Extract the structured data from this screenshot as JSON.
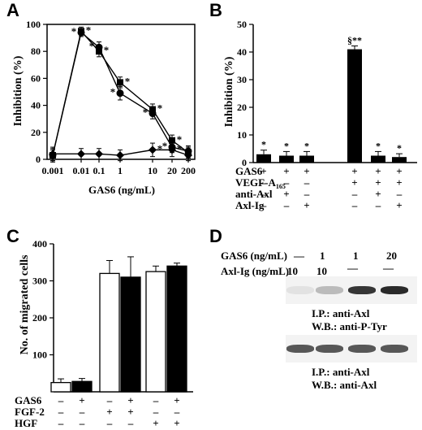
{
  "panels": {
    "A": {
      "letter": "A",
      "type": "line",
      "ylabel": "Inhibition (%)",
      "xlabel": "GAS6 (ng/mL)",
      "yticks": [
        "0",
        "20",
        "40",
        "60",
        "80",
        "100"
      ],
      "xticks": [
        "0.001",
        "0.01",
        "0.1",
        "1",
        "10",
        "20",
        "200"
      ],
      "ylim": [
        0,
        100
      ],
      "series": [
        {
          "marker": "square",
          "values": [
            3,
            95,
            80,
            57,
            37,
            14,
            5
          ],
          "errors": [
            5,
            3,
            4,
            4,
            4,
            4,
            4
          ],
          "stars": [
            false,
            true,
            true,
            true,
            true,
            true,
            false
          ]
        },
        {
          "marker": "circle",
          "values": [
            3,
            94,
            83,
            49,
            34,
            9,
            6
          ],
          "errors": [
            4,
            3,
            4,
            5,
            4,
            4,
            4
          ],
          "stars": [
            false,
            true,
            true,
            true,
            true,
            true,
            false
          ]
        },
        {
          "marker": "diamond",
          "values": [
            4,
            4,
            4,
            3,
            7,
            7,
            3
          ],
          "errors": [
            5,
            4,
            4,
            4,
            5,
            5,
            4
          ],
          "stars": [
            false,
            false,
            false,
            false,
            true,
            true,
            false
          ]
        }
      ]
    },
    "B": {
      "letter": "B",
      "type": "bar",
      "ylabel": "Inhibition (%)",
      "yticks": [
        "0",
        "10",
        "20",
        "30",
        "40",
        "50"
      ],
      "ylim": [
        0,
        50
      ],
      "values": [
        3,
        2.5,
        2.5,
        41,
        2.5,
        2
      ],
      "errors": [
        1.5,
        1.5,
        1.5,
        1.2,
        1.5,
        1.2
      ],
      "bar_labels": [
        "*",
        "*",
        "*",
        "§**",
        "*",
        "*"
      ],
      "rows": [
        {
          "label": "GAS6",
          "signs": [
            "+",
            "+",
            "+",
            "+",
            "+",
            "+"
          ]
        },
        {
          "label": "VEGF-A",
          "sub": "165",
          "signs": [
            "–",
            "–",
            "–",
            "+",
            "+",
            "+"
          ]
        },
        {
          "label": "anti-Axl",
          "signs": [
            "–",
            "+",
            "–",
            "–",
            "+",
            "–"
          ]
        },
        {
          "label": "Axl-Ig",
          "signs": [
            "–",
            "–",
            "+",
            "–",
            "–",
            "+"
          ]
        }
      ]
    },
    "C": {
      "letter": "C",
      "type": "bar",
      "ylabel": "No. of migrated cells",
      "yticks": [
        "100",
        "200",
        "300",
        "400"
      ],
      "ylim": [
        0,
        400
      ],
      "series": [
        {
          "fill": "white",
          "values": [
            25,
            320,
            325
          ],
          "errors": [
            10,
            35,
            15
          ]
        },
        {
          "fill": "black",
          "values": [
            28,
            310,
            340
          ],
          "errors": [
            8,
            55,
            8
          ]
        }
      ],
      "rows": [
        {
          "label": "GAS6",
          "signs": [
            "–",
            "+",
            "–",
            "+",
            "–",
            "+"
          ]
        },
        {
          "label": "FGF-2",
          "signs": [
            "–",
            "–",
            "+",
            "+",
            "–",
            "–"
          ]
        },
        {
          "label": "HGF",
          "signs": [
            "–",
            "–",
            "–",
            "–",
            "+",
            "+"
          ]
        }
      ]
    },
    "D": {
      "letter": "D",
      "conditions": [
        {
          "label": "GAS6 (ng/mL)",
          "values": [
            "—",
            "1",
            "1",
            "20"
          ]
        },
        {
          "label": "Axl-Ig (ng/mL)",
          "values": [
            "10",
            "10",
            "—",
            "—"
          ]
        }
      ],
      "blot1": {
        "line1": "I.P.: anti-Axl",
        "line2": "W.B.: anti-P-Tyr",
        "bands": [
          0.08,
          0.25,
          0.85,
          0.9
        ]
      },
      "blot2": {
        "line1": "I.P.: anti-Axl",
        "line2": "W.B.: anti-Axl",
        "bands": [
          0.7,
          0.7,
          0.7,
          0.7
        ]
      }
    }
  }
}
